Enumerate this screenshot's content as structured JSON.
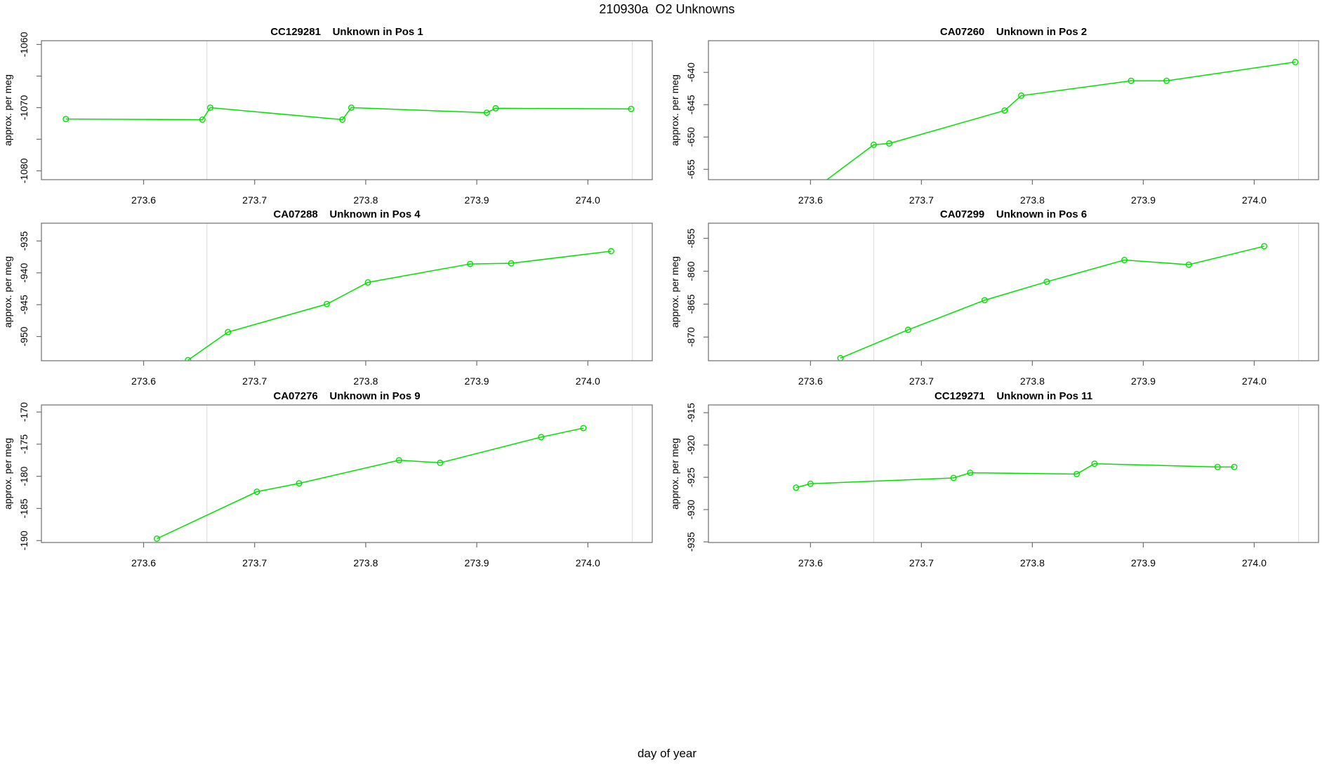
{
  "figure": {
    "main_title": "210930a  O2 Unknowns",
    "x_axis_label": "day of year"
  },
  "colors": {
    "series_green": "#00e000",
    "vline_gray": "#e0e0e0",
    "axis_gray": "#6e6e6e",
    "text_black": "#000000"
  },
  "chart_data": [
    {
      "type": "line",
      "sample_id": "CC129281",
      "position_label": "Pos 1",
      "title": "CC129281    Unknown in Pos 1",
      "ylabel": "approx. per meg",
      "xlim": [
        273.508,
        274.058
      ],
      "ylim": [
        -1081.4,
        -1059.4
      ],
      "xticks": [
        273.6,
        273.7,
        273.8,
        273.9,
        274.0
      ],
      "xtick_labels": [
        "273.6",
        "273.7",
        "273.8",
        "273.9",
        "274.0"
      ],
      "yticks": [
        -1080,
        -1075,
        -1070,
        -1065,
        -1060
      ],
      "ytick_labels": [
        "-1080",
        "",
        "-1070",
        "",
        "-1060"
      ],
      "vlines": [
        273.657,
        274.04
      ],
      "x": [
        273.53,
        273.653,
        273.66,
        273.779,
        273.787,
        273.909,
        273.917,
        274.039
      ],
      "y": [
        -1071.8,
        -1071.9,
        -1070.0,
        -1071.9,
        -1070.0,
        -1070.8,
        -1070.1,
        -1070.2
      ],
      "grid_row": 0,
      "grid_col": 0
    },
    {
      "type": "line",
      "sample_id": "CA07260",
      "position_label": "Pos 2",
      "title": "CA07260    Unknown in Pos 2",
      "ylabel": "approx. per meg",
      "xlim": [
        273.508,
        274.058
      ],
      "ylim": [
        -656.6,
        -635.1
      ],
      "xticks": [
        273.6,
        273.7,
        273.8,
        273.9,
        274.0
      ],
      "xtick_labels": [
        "273.6",
        "273.7",
        "273.8",
        "273.9",
        "274.0"
      ],
      "yticks": [
        -655,
        -650,
        -645,
        -640
      ],
      "ytick_labels": [
        "-655",
        "-650",
        "-645",
        "-640"
      ],
      "vlines": [
        273.657,
        274.04
      ],
      "x": [
        273.6,
        273.657,
        273.671,
        273.775,
        273.79,
        273.889,
        273.921,
        274.037
      ],
      "y": [
        -658.5,
        -651.2,
        -651.0,
        -645.9,
        -643.6,
        -641.3,
        -641.3,
        -638.4
      ],
      "grid_row": 0,
      "grid_col": 1
    },
    {
      "type": "line",
      "sample_id": "CA07288",
      "position_label": "Pos 4",
      "title": "CA07288    Unknown in Pos 4",
      "ylabel": "approx. per meg",
      "xlim": [
        273.508,
        274.058
      ],
      "ylim": [
        -953.8,
        -932.2
      ],
      "xticks": [
        273.6,
        273.7,
        273.8,
        273.9,
        274.0
      ],
      "xtick_labels": [
        "273.6",
        "273.7",
        "273.8",
        "273.9",
        "274.0"
      ],
      "yticks": [
        -950,
        -945,
        -940,
        -935
      ],
      "ytick_labels": [
        "-950",
        "-945",
        "-940",
        "-935"
      ],
      "vlines": [
        273.657,
        274.04
      ],
      "x": [
        273.64,
        273.676,
        273.765,
        273.802,
        273.894,
        273.931,
        274.021
      ],
      "y": [
        -953.7,
        -949.3,
        -944.9,
        -941.5,
        -938.6,
        -938.5,
        -936.6
      ],
      "grid_row": 1,
      "grid_col": 0
    },
    {
      "type": "line",
      "sample_id": "CA07299",
      "position_label": "Pos 6",
      "title": "CA07299    Unknown in Pos 6",
      "ylabel": "approx. per meg",
      "xlim": [
        273.508,
        274.058
      ],
      "ylim": [
        -873.6,
        -852.7
      ],
      "xticks": [
        273.6,
        273.7,
        273.8,
        273.9,
        274.0
      ],
      "xtick_labels": [
        "273.6",
        "273.7",
        "273.8",
        "273.9",
        "274.0"
      ],
      "yticks": [
        -870,
        -865,
        -860,
        -855
      ],
      "ytick_labels": [
        "-870",
        "-865",
        "-860",
        "-855"
      ],
      "vlines": [
        273.657,
        274.04
      ],
      "x": [
        273.627,
        273.688,
        273.757,
        273.813,
        273.883,
        273.941,
        274.009
      ],
      "y": [
        -873.2,
        -868.9,
        -864.4,
        -861.6,
        -858.3,
        -859.0,
        -856.2
      ],
      "grid_row": 1,
      "grid_col": 1
    },
    {
      "type": "line",
      "sample_id": "CA07276",
      "position_label": "Pos 9",
      "title": "CA07276    Unknown in Pos 9",
      "ylabel": "approx. per meg",
      "xlim": [
        273.508,
        274.058
      ],
      "ylim": [
        -190.3,
        -168.9
      ],
      "xticks": [
        273.6,
        273.7,
        273.8,
        273.9,
        274.0
      ],
      "xtick_labels": [
        "273.6",
        "273.7",
        "273.8",
        "273.9",
        "274.0"
      ],
      "yticks": [
        -190,
        -185,
        -180,
        -175,
        -170
      ],
      "ytick_labels": [
        "-190",
        "-185",
        "-180",
        "-175",
        "-170"
      ],
      "vlines": [
        273.657,
        274.04
      ],
      "x": [
        273.612,
        273.702,
        273.74,
        273.83,
        273.867,
        273.958,
        273.996
      ],
      "y": [
        -189.7,
        -182.4,
        -181.1,
        -177.5,
        -177.9,
        -173.9,
        -172.5
      ],
      "grid_row": 2,
      "grid_col": 0
    },
    {
      "type": "line",
      "sample_id": "CC129271",
      "position_label": "Pos 11",
      "title": "CC129271    Unknown in Pos 11",
      "ylabel": "approx. per meg",
      "xlim": [
        273.508,
        274.058
      ],
      "ylim": [
        -935.1,
        -913.8
      ],
      "xticks": [
        273.6,
        273.7,
        273.8,
        273.9,
        274.0
      ],
      "xtick_labels": [
        "273.6",
        "273.7",
        "273.8",
        "273.9",
        "274.0"
      ],
      "yticks": [
        -935,
        -930,
        -925,
        -920,
        -915
      ],
      "ytick_labels": [
        "-935",
        "-930",
        "-925",
        "-920",
        "-915"
      ],
      "vlines": [
        273.657,
        274.04
      ],
      "x": [
        273.587,
        273.6,
        273.729,
        273.744,
        273.84,
        273.856,
        273.967,
        273.982
      ],
      "y": [
        -926.6,
        -926.0,
        -925.1,
        -924.3,
        -924.5,
        -922.9,
        -923.4,
        -923.4
      ],
      "grid_row": 2,
      "grid_col": 1
    }
  ]
}
